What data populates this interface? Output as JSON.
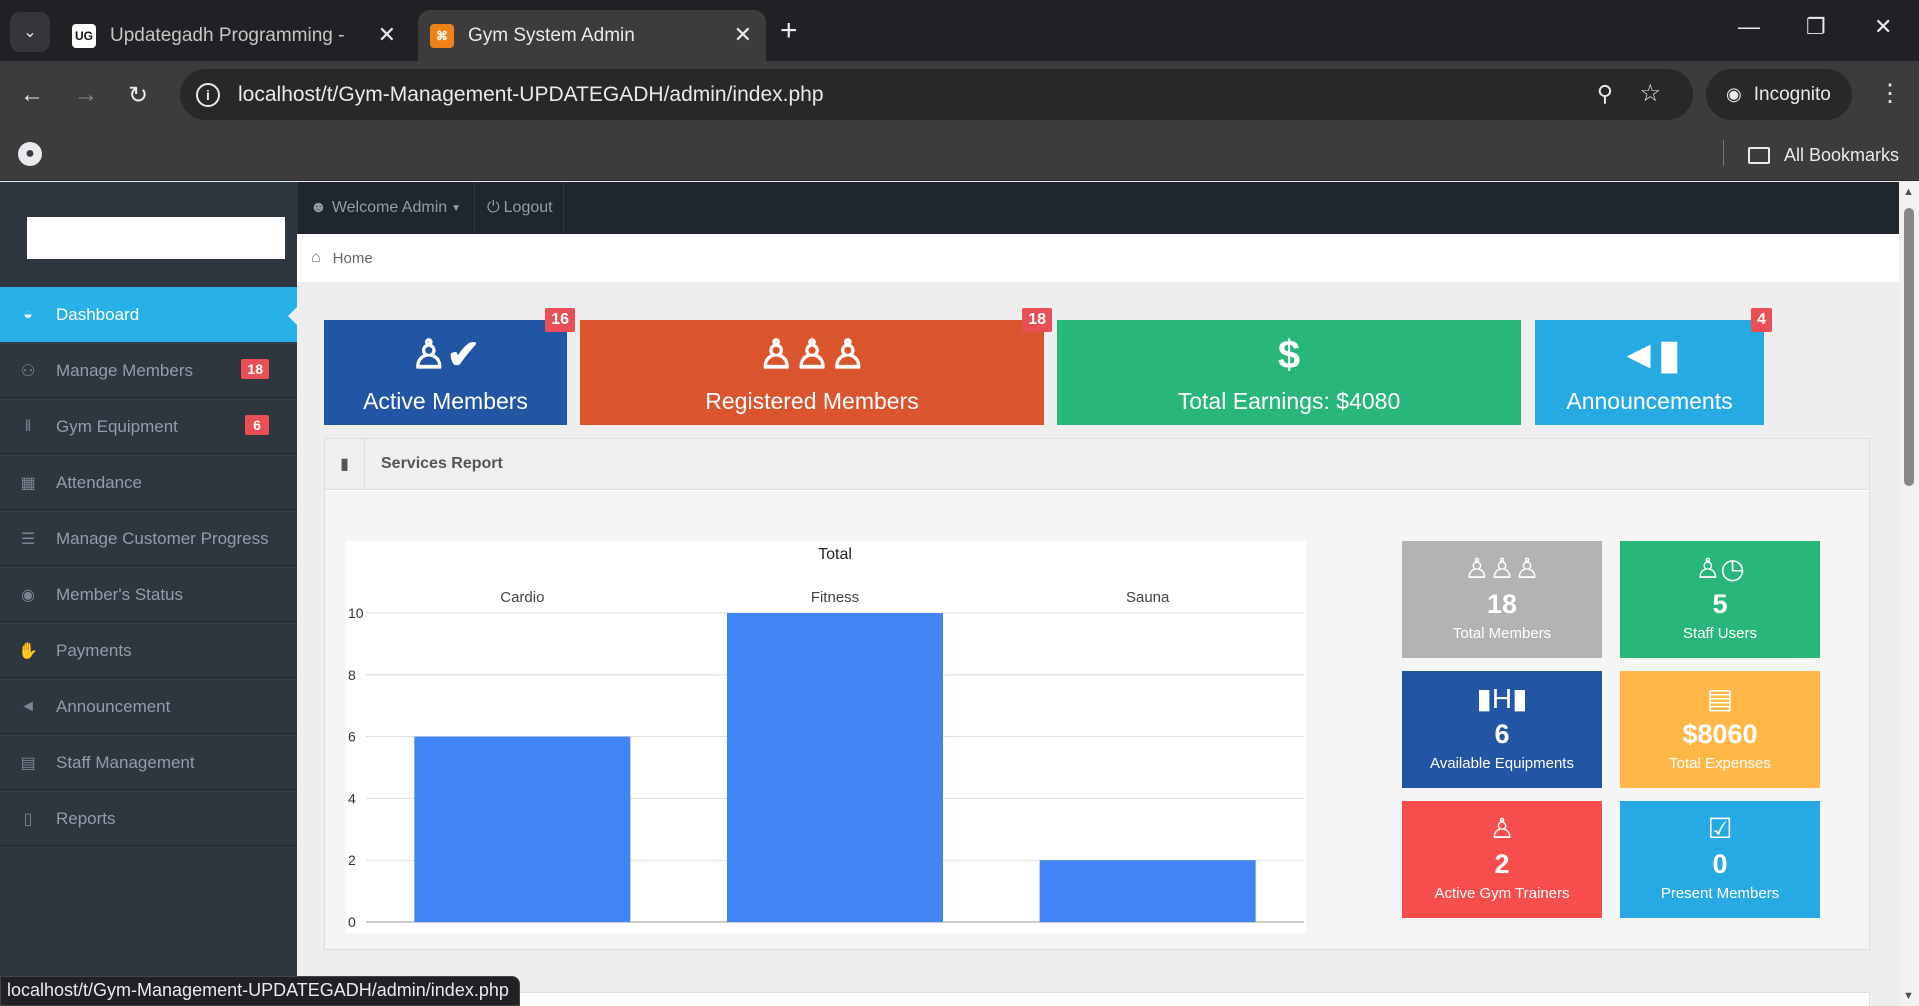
{
  "browser": {
    "tabs": [
      {
        "favicon": "UG",
        "title": "Updategadh Programming - Up"
      },
      {
        "favicon": "⌘",
        "title": "Gym System Admin"
      }
    ],
    "url": "localhost/t/Gym-Management-UPDATEGADH/admin/index.php",
    "incognito_label": "Incognito",
    "bookmarks_label": "All Bookmarks",
    "status_url": "localhost/t/Gym-Management-UPDATEGADH/admin/index.php"
  },
  "topnav": {
    "welcome": "Welcome Admin",
    "logout": "Logout"
  },
  "breadcrumb": {
    "home": "Home"
  },
  "sidebar": {
    "items": [
      {
        "label": "Dashboard",
        "icon": "dashboard-icon",
        "glyph": "◒"
      },
      {
        "label": "Manage Members",
        "icon": "users-icon",
        "glyph": "⚇",
        "badge": "18"
      },
      {
        "label": "Gym Equipment",
        "icon": "dumbbell-icon",
        "glyph": "‖",
        "badge": "6"
      },
      {
        "label": "Attendance",
        "icon": "calendar-icon",
        "glyph": "▦"
      },
      {
        "label": "Manage Customer Progress",
        "icon": "list-icon",
        "glyph": "☰"
      },
      {
        "label": "Member's Status",
        "icon": "eye-icon",
        "glyph": "◉"
      },
      {
        "label": "Payments",
        "icon": "hand-money-icon",
        "glyph": "✋"
      },
      {
        "label": "Announcement",
        "icon": "bullhorn-icon",
        "glyph": "◄"
      },
      {
        "label": "Staff Management",
        "icon": "briefcase-icon",
        "glyph": "▤"
      },
      {
        "label": "Reports",
        "icon": "file-icon",
        "glyph": "▯"
      }
    ]
  },
  "stats": [
    {
      "label": "Active Members",
      "badge": "16",
      "icon": "user-check-icon",
      "color": "#2255a4"
    },
    {
      "label": "Registered Members",
      "badge": "18",
      "icon": "users-icon",
      "color": "#da542e"
    },
    {
      "label": "Total Earnings: $4080",
      "icon": "dollar-icon",
      "color": "#28b779"
    },
    {
      "label": "Announcements",
      "badge": "4",
      "icon": "bullhorn-icon",
      "color": "#27a9e3"
    }
  ],
  "panel": {
    "title": "Services Report"
  },
  "chart_data": {
    "type": "bar",
    "title": "Total",
    "categories": [
      "Cardio",
      "Fitness",
      "Sauna"
    ],
    "values": [
      6,
      10,
      2
    ],
    "ylim": [
      0,
      10
    ],
    "yticks": [
      0,
      2,
      4,
      6,
      8,
      10
    ],
    "bar_color": "#4285f4",
    "grid": true
  },
  "tiles": [
    {
      "value": "18",
      "label": "Total Members",
      "icon": "users-icon",
      "color": "#b3b3b3"
    },
    {
      "value": "5",
      "label": "Staff Users",
      "icon": "user-clock-icon",
      "color": "#28b779"
    },
    {
      "value": "6",
      "label": "Available Equipments",
      "icon": "dumbbell-icon",
      "color": "#2255a4"
    },
    {
      "value": "$8060",
      "label": "Total Expenses",
      "icon": "invoice-icon",
      "color": "#ffb848"
    },
    {
      "value": "2",
      "label": "Active Gym Trainers",
      "icon": "trainer-icon",
      "color": "#f74d4d"
    },
    {
      "value": "0",
      "label": "Present Members",
      "icon": "calendar-check-icon",
      "color": "#27a9e3"
    }
  ]
}
